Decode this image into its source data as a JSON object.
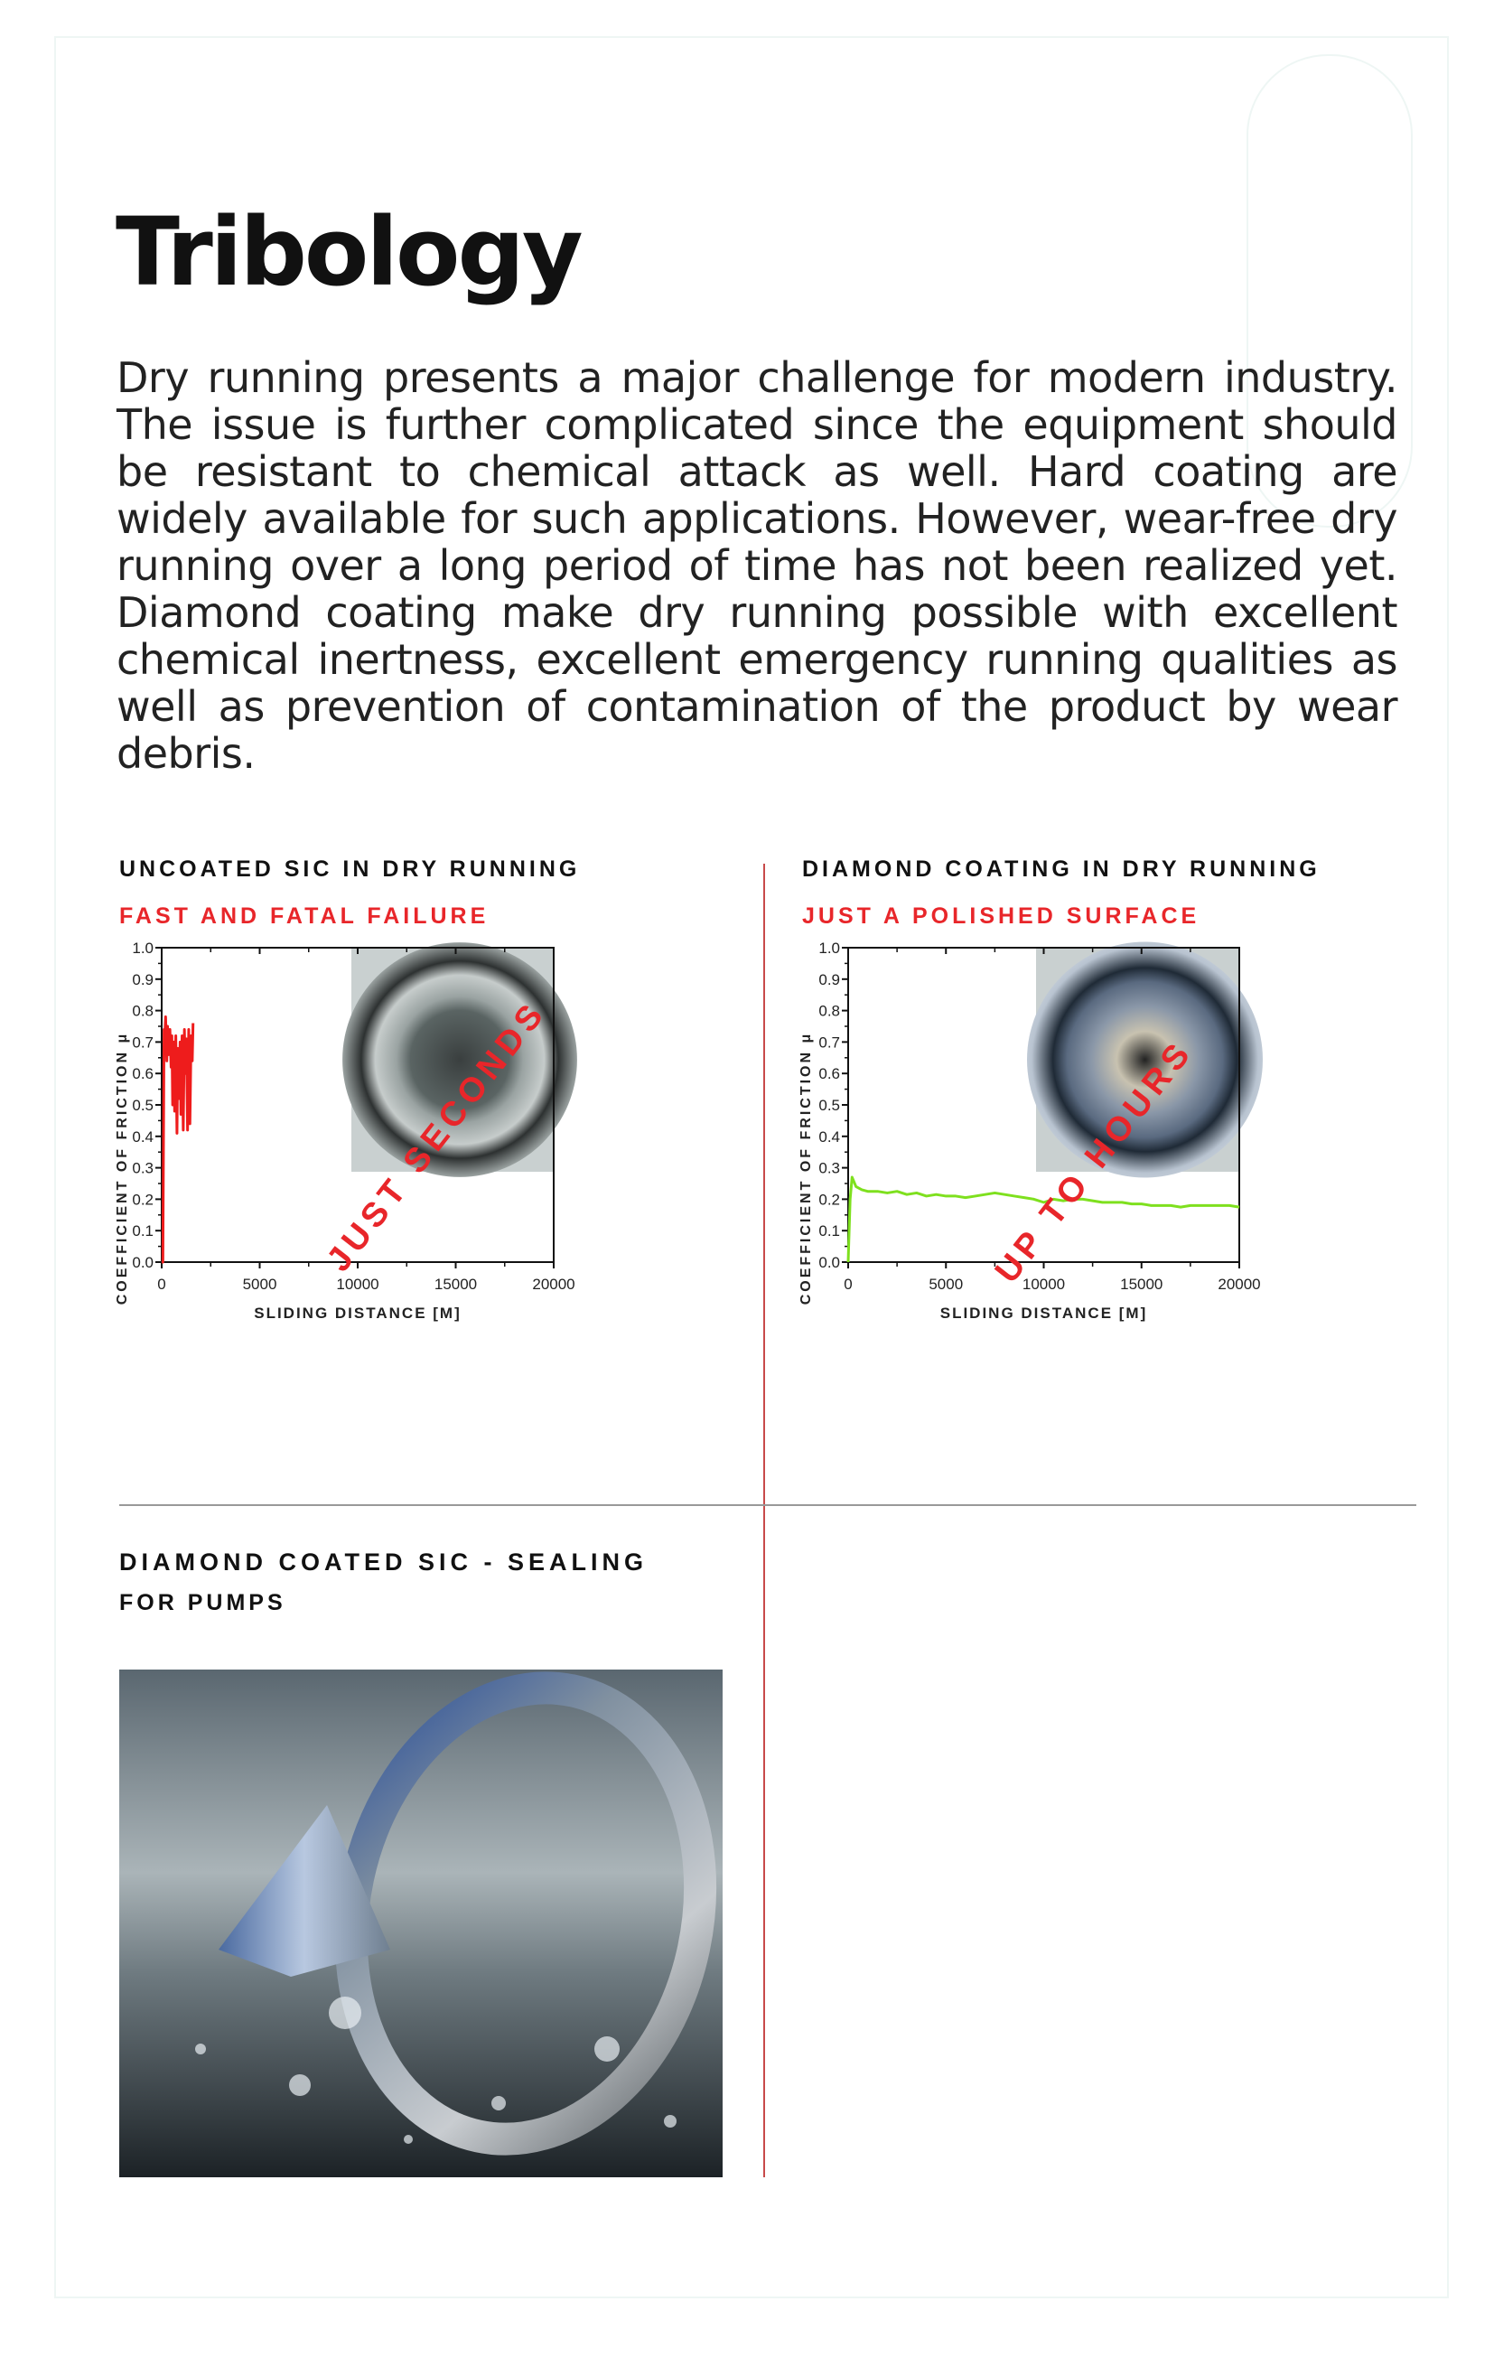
{
  "page": {
    "title": "Tribology",
    "intro": "Dry running presents a major challenge for modern industry. The issue is further complicated since the equipment should be resistant to chemical attack as well. Hard coating are widely available for such applications. However, wear-free dry running over a long period of time has not been realized yet. Diamond coating make dry running possible with excellent chemical inertness, excellent emergency running qualities as well as prevention of contamination of the product by wear debris."
  },
  "sections": [
    {
      "heading": "Uncoated SiC in dry running",
      "subheading": "Fast and fatal failure"
    },
    {
      "heading": "Diamond coating in dry running",
      "subheading": "Just a polished surface"
    },
    {
      "heading_line1": "Diamond coated SiC - sealing",
      "heading_line2": "for pumps"
    }
  ],
  "colors": {
    "accent_red": "#e8262a",
    "series_red": "#ee1c1c",
    "series_green": "#7ee01e"
  },
  "chart_data": [
    {
      "type": "line",
      "xlabel": "SLIDING DISTANCE [M]",
      "ylabel": "COEFFICIENT OF FRICTION μ",
      "xlim": [
        0,
        20000
      ],
      "ylim": [
        0,
        1.0
      ],
      "xticks": [
        "0",
        "5000",
        "10000",
        "15000",
        "20000"
      ],
      "yticks": [
        "0.0",
        "0.1",
        "0.2",
        "0.3",
        "0.4",
        "0.5",
        "0.6",
        "0.7",
        "0.8",
        "0.9",
        "1.0"
      ],
      "annotation": "JUST SECONDS",
      "inset_photo": "worn-seal-photo",
      "series": [
        {
          "color": "#ee1c1c",
          "x": [
            0,
            60,
            120,
            160,
            200,
            260,
            300,
            360,
            420,
            480,
            520,
            560,
            620,
            660,
            720,
            780,
            820,
            880,
            940,
            980,
            1040,
            1100,
            1160,
            1200,
            1260,
            1320,
            1380,
            1440,
            1500,
            1560,
            1600
          ],
          "y": [
            0.0,
            0.0,
            0.74,
            0.72,
            0.78,
            0.64,
            0.75,
            0.66,
            0.74,
            0.62,
            0.72,
            0.5,
            0.7,
            0.48,
            0.72,
            0.41,
            0.68,
            0.52,
            0.7,
            0.47,
            0.72,
            0.42,
            0.74,
            0.6,
            0.71,
            0.42,
            0.74,
            0.44,
            0.72,
            0.64,
            0.76
          ]
        }
      ]
    },
    {
      "type": "line",
      "xlabel": "SLIDING DISTANCE [M]",
      "ylabel": "COEFFICIENT OF FRICTION μ",
      "xlim": [
        0,
        20000
      ],
      "ylim": [
        0,
        1.0
      ],
      "xticks": [
        "0",
        "5000",
        "10000",
        "15000",
        "20000"
      ],
      "yticks": [
        "0.0",
        "0.1",
        "0.2",
        "0.3",
        "0.4",
        "0.5",
        "0.6",
        "0.7",
        "0.8",
        "0.9",
        "1.0"
      ],
      "annotation": "UP TO HOURS",
      "inset_photo": "polished-seal-photo",
      "series": [
        {
          "color": "#7ee01e",
          "x": [
            0,
            100,
            200,
            400,
            700,
            1000,
            1500,
            2000,
            2500,
            3000,
            3500,
            4000,
            4500,
            5000,
            5500,
            6000,
            6500,
            7000,
            7500,
            8000,
            8500,
            9000,
            9500,
            10000,
            10500,
            11000,
            11500,
            12000,
            12500,
            13000,
            13500,
            14000,
            14500,
            15000,
            15500,
            16000,
            16500,
            17000,
            17500,
            18000,
            18500,
            19000,
            19500,
            20000
          ],
          "y": [
            0.0,
            0.2,
            0.27,
            0.24,
            0.23,
            0.225,
            0.225,
            0.22,
            0.225,
            0.215,
            0.22,
            0.21,
            0.215,
            0.21,
            0.21,
            0.205,
            0.21,
            0.215,
            0.22,
            0.215,
            0.21,
            0.205,
            0.2,
            0.19,
            0.2,
            0.195,
            0.2,
            0.2,
            0.195,
            0.19,
            0.19,
            0.19,
            0.185,
            0.185,
            0.18,
            0.18,
            0.18,
            0.175,
            0.18,
            0.18,
            0.18,
            0.18,
            0.18,
            0.175
          ]
        }
      ]
    }
  ]
}
